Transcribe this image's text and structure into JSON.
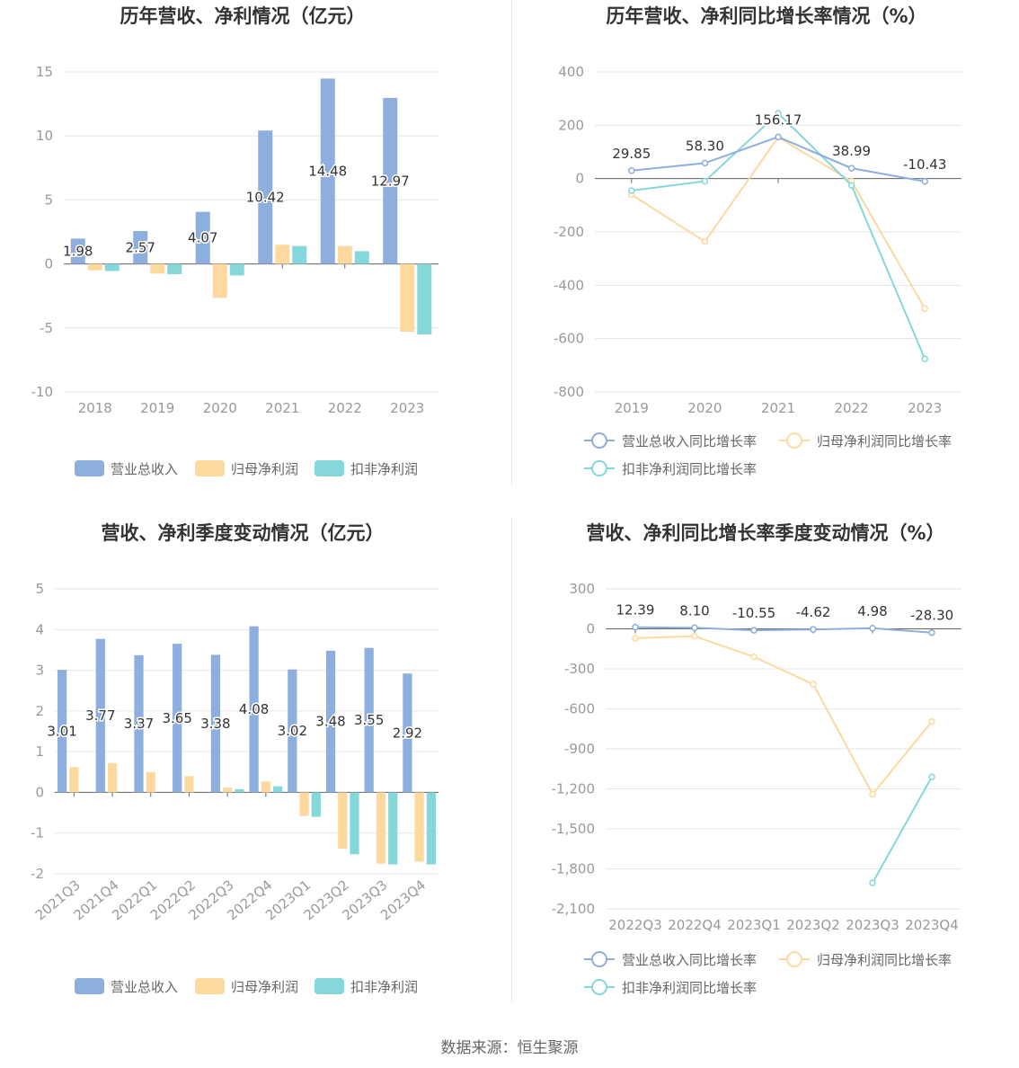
{
  "source_label": "数据来源：恒生聚源",
  "colors": {
    "revenue": "#8eaedd",
    "net_profit": "#fdd9a0",
    "deducted_profit": "#86d7da",
    "grid": "#e6e6e6",
    "axis_text": "#999999",
    "title": "#333333"
  },
  "chart_data": [
    {
      "type": "bar",
      "title": "历年营收、净利情况（亿元）",
      "categories": [
        "2018",
        "2019",
        "2020",
        "2021",
        "2022",
        "2023"
      ],
      "ylim": [
        -10,
        15
      ],
      "yticks": [
        15,
        10,
        5,
        0,
        -5,
        -10
      ],
      "ytick_labels": [
        "15",
        "10",
        "5",
        "0",
        "-5",
        "-10"
      ],
      "series": [
        {
          "name": "营业总收入",
          "values": [
            1.98,
            2.57,
            4.07,
            10.42,
            14.48,
            12.97
          ],
          "labels": [
            "1.98",
            "2.57",
            "4.07",
            "10.42",
            "14.48",
            "12.97"
          ]
        },
        {
          "name": "归母净利润",
          "values": [
            -0.5,
            -0.75,
            -2.65,
            1.5,
            1.4,
            -5.3
          ]
        },
        {
          "name": "扣非净利润",
          "values": [
            -0.55,
            -0.8,
            -0.9,
            1.4,
            1.0,
            -5.5
          ]
        }
      ],
      "legend": "bottom-center"
    },
    {
      "type": "line",
      "title": "历年营收、净利同比增长率情况（%）",
      "categories": [
        "2019",
        "2020",
        "2021",
        "2022",
        "2023"
      ],
      "ylim": [
        -800,
        400
      ],
      "yticks": [
        400,
        200,
        0,
        -200,
        -400,
        -600,
        -800
      ],
      "ytick_labels": [
        "400",
        "200",
        "0",
        "-200",
        "-400",
        "-600",
        "-800"
      ],
      "series": [
        {
          "name": "营业总收入同比增长率",
          "values": [
            29.85,
            58.3,
            156.17,
            38.99,
            -10.43
          ],
          "labels": [
            "29.85",
            "58.30",
            "156.17",
            "38.99",
            "-10.43"
          ]
        },
        {
          "name": "归母净利润同比增长率",
          "values": [
            -60,
            -236,
            155,
            -10,
            -487
          ]
        },
        {
          "name": "扣非净利润同比增长率",
          "values": [
            -45,
            -10,
            245,
            -25,
            -676
          ]
        }
      ],
      "legend": "bottom-center"
    },
    {
      "type": "bar",
      "title": "营收、净利季度变动情况（亿元）",
      "categories": [
        "2021Q3",
        "2021Q4",
        "2022Q1",
        "2022Q2",
        "2022Q3",
        "2022Q4",
        "2023Q1",
        "2023Q2",
        "2023Q3",
        "2023Q4"
      ],
      "ylim": [
        -2,
        5
      ],
      "yticks": [
        5,
        4,
        3,
        2,
        1,
        0,
        -1,
        -2
      ],
      "ytick_labels": [
        "5",
        "4",
        "3",
        "2",
        "1",
        "0",
        "-1",
        "-2"
      ],
      "series": [
        {
          "name": "营业总收入",
          "values": [
            3.01,
            3.77,
            3.37,
            3.65,
            3.38,
            4.08,
            3.02,
            3.48,
            3.55,
            2.92
          ],
          "labels": [
            "3.01",
            "3.77",
            "3.37",
            "3.65",
            "3.38",
            "4.08",
            "3.02",
            "3.48",
            "3.55",
            "2.92"
          ]
        },
        {
          "name": "归母净利润",
          "values": [
            0.62,
            0.72,
            0.5,
            0.4,
            0.12,
            0.27,
            -0.58,
            -1.38,
            -1.75,
            -1.7
          ]
        },
        {
          "name": "扣非净利润",
          "values": [
            0,
            0,
            0,
            0,
            0.08,
            0.15,
            -0.6,
            -1.52,
            -1.77,
            -1.77
          ]
        }
      ],
      "legend": "bottom-center"
    },
    {
      "type": "line",
      "title": "营收、净利同比增长率季度变动情况（%）",
      "categories": [
        "2022Q3",
        "2022Q4",
        "2023Q1",
        "2023Q2",
        "2023Q3",
        "2023Q4"
      ],
      "ylim": [
        -2100,
        300
      ],
      "yticks": [
        300,
        0,
        -300,
        -600,
        -900,
        -1200,
        -1500,
        -1800,
        -2100
      ],
      "ytick_labels": [
        "300",
        "0",
        "-300",
        "-600",
        "-900",
        "-1,200",
        "-1,500",
        "-1,800",
        "-2,100"
      ],
      "series": [
        {
          "name": "营业总收入同比增长率",
          "values": [
            12.39,
            8.1,
            -10.55,
            -4.62,
            4.98,
            -28.3
          ],
          "labels": [
            "12.39",
            "8.10",
            "-10.55",
            "-4.62",
            "4.98",
            "-28.30"
          ]
        },
        {
          "name": "归母净利润同比增长率",
          "values": [
            -70,
            -55,
            -210,
            -415,
            -1240,
            -695
          ]
        },
        {
          "name": "扣非净利润同比增长率",
          "values": [
            null,
            null,
            null,
            null,
            -1905,
            -1110
          ]
        }
      ],
      "legend": "bottom-center"
    }
  ]
}
